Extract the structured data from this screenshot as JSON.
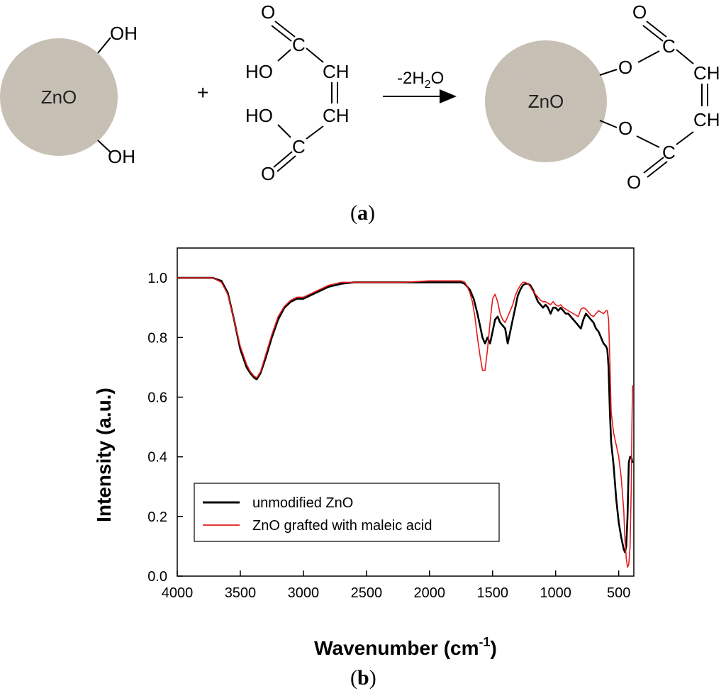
{
  "scheme": {
    "particle_label": "ZnO",
    "plus": "+",
    "reactant_groups": {
      "oh": "OH",
      "ho": "HO",
      "c": "C",
      "o": "O",
      "ch": "CH"
    },
    "arrow_label_prefix": "-2H",
    "arrow_label_sub": "2",
    "arrow_label_suffix": "O",
    "particle_fill": "#c8c0b4",
    "panel_label": "a"
  },
  "chart_panel_label": "b",
  "chart_data": {
    "type": "line",
    "title": "",
    "xlabel": "Wavenumber",
    "xlabel_unit_base": "cm",
    "xlabel_unit_exp": "-1",
    "ylabel": "Intensity (a.u.)",
    "xlim": [
      4000,
      380
    ],
    "x_reversed": true,
    "ylim": [
      0.0,
      1.1
    ],
    "xticks": [
      "4000",
      "3500",
      "3000",
      "2500",
      "2000",
      "1500",
      "1000",
      "500"
    ],
    "xtick_values": [
      4000,
      3500,
      3000,
      2500,
      2000,
      1500,
      1000,
      500
    ],
    "yticks": [
      "0.0",
      "0.2",
      "0.4",
      "0.6",
      "0.8",
      "1.0"
    ],
    "ytick_values": [
      0.0,
      0.2,
      0.4,
      0.6,
      0.8,
      1.0
    ],
    "grid": false,
    "legend_position": "bottom-left",
    "series": [
      {
        "name": "unmodified ZnO",
        "color": "#000000",
        "x": [
          4000,
          3800,
          3720,
          3650,
          3600,
          3550,
          3500,
          3450,
          3420,
          3390,
          3370,
          3340,
          3300,
          3250,
          3200,
          3150,
          3100,
          3050,
          3000,
          2950,
          2900,
          2850,
          2800,
          2750,
          2700,
          2600,
          2400,
          2200,
          2000,
          1800,
          1750,
          1720,
          1700,
          1680,
          1650,
          1620,
          1600,
          1580,
          1560,
          1540,
          1520,
          1500,
          1480,
          1460,
          1440,
          1420,
          1400,
          1380,
          1360,
          1340,
          1320,
          1300,
          1280,
          1260,
          1240,
          1220,
          1200,
          1180,
          1160,
          1140,
          1120,
          1100,
          1080,
          1060,
          1040,
          1020,
          1000,
          980,
          960,
          940,
          920,
          900,
          880,
          860,
          840,
          820,
          800,
          780,
          760,
          740,
          720,
          700,
          680,
          660,
          640,
          620,
          600,
          590,
          580,
          570,
          560,
          540,
          520,
          500,
          480,
          460,
          450,
          440,
          430,
          420,
          410,
          400,
          395,
          390
        ],
        "y": [
          1.0,
          1.0,
          1.0,
          0.99,
          0.95,
          0.86,
          0.76,
          0.7,
          0.68,
          0.665,
          0.66,
          0.68,
          0.73,
          0.8,
          0.86,
          0.9,
          0.92,
          0.93,
          0.93,
          0.94,
          0.95,
          0.96,
          0.97,
          0.975,
          0.98,
          0.985,
          0.985,
          0.985,
          0.985,
          0.985,
          0.985,
          0.98,
          0.97,
          0.96,
          0.93,
          0.88,
          0.84,
          0.8,
          0.78,
          0.8,
          0.78,
          0.82,
          0.86,
          0.87,
          0.85,
          0.84,
          0.83,
          0.78,
          0.82,
          0.86,
          0.9,
          0.94,
          0.96,
          0.975,
          0.98,
          0.98,
          0.975,
          0.96,
          0.94,
          0.92,
          0.91,
          0.9,
          0.91,
          0.9,
          0.88,
          0.9,
          0.9,
          0.89,
          0.9,
          0.89,
          0.88,
          0.88,
          0.87,
          0.86,
          0.85,
          0.84,
          0.83,
          0.86,
          0.88,
          0.87,
          0.86,
          0.85,
          0.83,
          0.82,
          0.8,
          0.78,
          0.77,
          0.76,
          0.7,
          0.55,
          0.45,
          0.37,
          0.26,
          0.18,
          0.13,
          0.09,
          0.08,
          0.1,
          0.2,
          0.38,
          0.4,
          0.4,
          0.39,
          0.38
        ]
      },
      {
        "name": "ZnO grafted with maleic acid",
        "color": "#e31a1c",
        "x": [
          4000,
          3800,
          3720,
          3650,
          3600,
          3550,
          3500,
          3450,
          3420,
          3390,
          3370,
          3340,
          3300,
          3250,
          3200,
          3150,
          3100,
          3050,
          3000,
          2950,
          2900,
          2850,
          2800,
          2750,
          2700,
          2600,
          2400,
          2200,
          2000,
          1800,
          1750,
          1720,
          1700,
          1680,
          1660,
          1640,
          1620,
          1600,
          1580,
          1560,
          1540,
          1520,
          1500,
          1480,
          1460,
          1440,
          1420,
          1400,
          1380,
          1360,
          1340,
          1320,
          1300,
          1280,
          1260,
          1240,
          1220,
          1200,
          1180,
          1160,
          1140,
          1120,
          1100,
          1080,
          1060,
          1040,
          1020,
          1000,
          980,
          960,
          940,
          920,
          900,
          880,
          860,
          840,
          820,
          800,
          780,
          760,
          740,
          720,
          700,
          680,
          660,
          640,
          620,
          600,
          590,
          580,
          570,
          560,
          540,
          520,
          500,
          480,
          460,
          450,
          440,
          430,
          420,
          410,
          400,
          395,
          390
        ],
        "y": [
          1.0,
          1.0,
          1.0,
          0.985,
          0.945,
          0.86,
          0.77,
          0.71,
          0.685,
          0.67,
          0.665,
          0.685,
          0.74,
          0.81,
          0.87,
          0.905,
          0.925,
          0.935,
          0.935,
          0.945,
          0.955,
          0.965,
          0.975,
          0.98,
          0.985,
          0.985,
          0.985,
          0.985,
          0.99,
          0.99,
          0.99,
          0.985,
          0.97,
          0.95,
          0.92,
          0.87,
          0.8,
          0.74,
          0.69,
          0.69,
          0.76,
          0.85,
          0.93,
          0.945,
          0.92,
          0.88,
          0.86,
          0.85,
          0.87,
          0.89,
          0.91,
          0.94,
          0.96,
          0.975,
          0.985,
          0.985,
          0.98,
          0.97,
          0.955,
          0.945,
          0.935,
          0.925,
          0.92,
          0.92,
          0.915,
          0.91,
          0.92,
          0.91,
          0.905,
          0.91,
          0.9,
          0.895,
          0.89,
          0.885,
          0.88,
          0.875,
          0.87,
          0.895,
          0.9,
          0.895,
          0.885,
          0.875,
          0.87,
          0.88,
          0.89,
          0.885,
          0.88,
          0.89,
          0.89,
          0.86,
          0.72,
          0.55,
          0.48,
          0.44,
          0.4,
          0.33,
          0.22,
          0.12,
          0.06,
          0.03,
          0.04,
          0.1,
          0.3,
          0.5,
          0.64
        ]
      }
    ]
  }
}
